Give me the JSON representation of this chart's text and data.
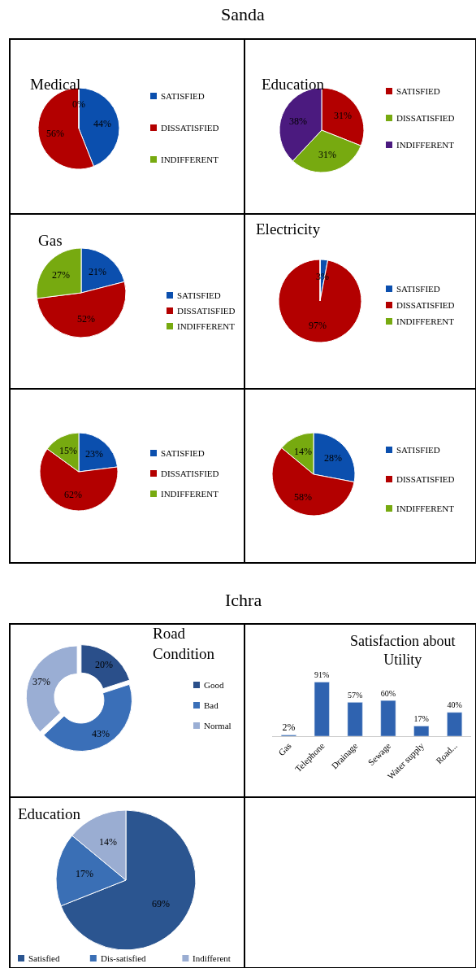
{
  "chart_data": [
    {
      "type": "pie",
      "title": "Medical",
      "annotations": [
        "Sanda"
      ],
      "categories": [
        "SATISFIED",
        "DISSATISFIED",
        "INDIFFERENT"
      ],
      "values": [
        44,
        56,
        0
      ],
      "value_labels": [
        "44%",
        "56%",
        "0%"
      ],
      "colors": [
        "#0b4fae",
        "#b30000",
        "#77aa10"
      ],
      "legend": "right"
    },
    {
      "type": "pie",
      "title": "Education",
      "categories": [
        "SATISFIED",
        "DISSATISFIED",
        "INDIFFERENT"
      ],
      "values": [
        31,
        31,
        38
      ],
      "value_labels": [
        "31%",
        "31%",
        "38%"
      ],
      "colors": [
        "#b30000",
        "#77aa10",
        "#4b1a7f"
      ],
      "legend": "right"
    },
    {
      "type": "pie",
      "title": "Gas",
      "categories": [
        "SATISFIED",
        "DISSATISFIED",
        "INDIFFERENT"
      ],
      "values": [
        21,
        52,
        27
      ],
      "value_labels": [
        "21%",
        "52%",
        "27%"
      ],
      "colors": [
        "#0b4fae",
        "#b30000",
        "#77aa10"
      ],
      "legend": "right"
    },
    {
      "type": "pie",
      "title": "Electricity",
      "categories": [
        "SATISFIED",
        "DISSATISFIED",
        "INDIFFERENT"
      ],
      "values": [
        3,
        97,
        0
      ],
      "value_labels": [
        "3%",
        "97%",
        null
      ],
      "colors": [
        "#0b4fae",
        "#b30000",
        "#77aa10"
      ],
      "legend": "right"
    },
    {
      "type": "pie",
      "categories": [
        "SATISFIED",
        "DISSATISFIED",
        "INDIFFERENT"
      ],
      "values": [
        23,
        62,
        15
      ],
      "value_labels": [
        "23%",
        "62%",
        "15%"
      ],
      "colors": [
        "#0b4fae",
        "#b30000",
        "#77aa10"
      ],
      "legend": "right"
    },
    {
      "type": "pie",
      "categories": [
        "SATISFIED",
        "DISSATISFIED",
        "INDIFFERENT"
      ],
      "values": [
        28,
        58,
        14
      ],
      "value_labels": [
        "28%",
        "58%",
        "14%"
      ],
      "colors": [
        "#0b4fae",
        "#b30000",
        "#77aa10"
      ],
      "legend": "right"
    },
    {
      "type": "donut",
      "title": "Road Condition",
      "annotations": [
        "Ichra"
      ],
      "categories": [
        "Good",
        "Bad",
        "Normal"
      ],
      "values": [
        20,
        43,
        37
      ],
      "value_labels": [
        "20%",
        "43%",
        "37%"
      ],
      "colors": [
        "#2a4f8a",
        "#3a6fb8",
        "#9aaed4"
      ],
      "legend": "right"
    },
    {
      "type": "bar",
      "title": "Satisfaction about Utility",
      "categories": [
        "Gas",
        "Telephone",
        "Drainage",
        "Sewage",
        "Water supply",
        "Road..."
      ],
      "values": [
        2,
        91,
        57,
        60,
        17,
        40
      ],
      "value_labels": [
        "2%",
        "91%",
        "57%",
        "60%",
        "17%",
        "40%"
      ],
      "color": "#2f63b0"
    },
    {
      "type": "pie",
      "title": "Education",
      "categories": [
        "Satisfied",
        "Dis-satisfied",
        "Indifferent"
      ],
      "values": [
        69,
        17,
        14
      ],
      "value_labels": [
        "69%",
        "17%",
        "14%"
      ],
      "colors": [
        "#2b5590",
        "#3a6fb5",
        "#9aadd2"
      ],
      "legend": "bottom"
    }
  ]
}
